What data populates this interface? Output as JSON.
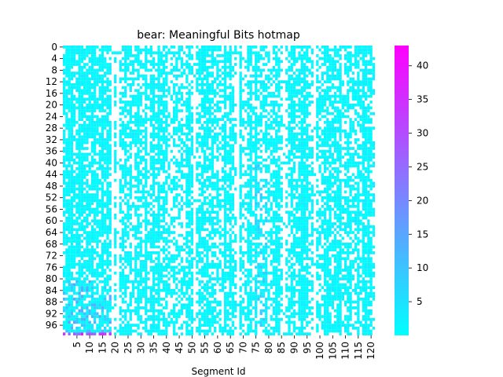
{
  "chart_data": {
    "type": "heatmap",
    "title": "bear: Meaningful Bits hotmap",
    "xlabel": "Segment Id",
    "ylabel": "",
    "n_cols": 122,
    "n_rows": 100,
    "x_ticks": [
      5,
      10,
      15,
      20,
      25,
      30,
      35,
      40,
      45,
      50,
      55,
      60,
      65,
      70,
      75,
      80,
      85,
      90,
      95,
      100,
      105,
      110,
      115,
      120
    ],
    "y_ticks": [
      0,
      4,
      8,
      12,
      16,
      20,
      24,
      28,
      32,
      36,
      40,
      44,
      48,
      52,
      56,
      60,
      64,
      68,
      72,
      76,
      80,
      84,
      88,
      92,
      96
    ],
    "colorbar": {
      "min": 0,
      "max": 43,
      "ticks": [
        5,
        10,
        15,
        20,
        25,
        30,
        35,
        40
      ],
      "colormap": "cool",
      "low_color": "#00ffff",
      "high_color": "#ff00ff"
    },
    "grid": false,
    "empty_cell_color": "#ffffff"
  }
}
